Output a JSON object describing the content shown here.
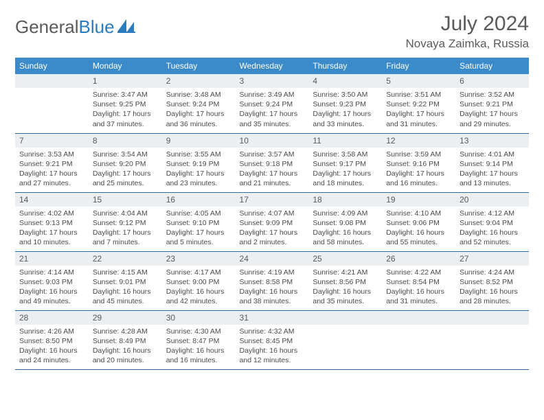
{
  "logo": {
    "text_a": "General",
    "text_b": "Blue"
  },
  "title": "July 2024",
  "location": "Novaya Zaimka, Russia",
  "colors": {
    "header_bg": "#3b8bca",
    "header_text": "#ffffff",
    "daynum_bg": "#eceff1",
    "border": "#2b6aa0",
    "text": "#4a4a4a",
    "logo_gray": "#5a5a5a",
    "logo_blue": "#2b7bbf"
  },
  "weekdays": [
    "Sunday",
    "Monday",
    "Tuesday",
    "Wednesday",
    "Thursday",
    "Friday",
    "Saturday"
  ],
  "weeks": [
    [
      null,
      {
        "n": "1",
        "sr": "3:47 AM",
        "ss": "9:25 PM",
        "dl": "17 hours and 37 minutes."
      },
      {
        "n": "2",
        "sr": "3:48 AM",
        "ss": "9:24 PM",
        "dl": "17 hours and 36 minutes."
      },
      {
        "n": "3",
        "sr": "3:49 AM",
        "ss": "9:24 PM",
        "dl": "17 hours and 35 minutes."
      },
      {
        "n": "4",
        "sr": "3:50 AM",
        "ss": "9:23 PM",
        "dl": "17 hours and 33 minutes."
      },
      {
        "n": "5",
        "sr": "3:51 AM",
        "ss": "9:22 PM",
        "dl": "17 hours and 31 minutes."
      },
      {
        "n": "6",
        "sr": "3:52 AM",
        "ss": "9:21 PM",
        "dl": "17 hours and 29 minutes."
      }
    ],
    [
      {
        "n": "7",
        "sr": "3:53 AM",
        "ss": "9:21 PM",
        "dl": "17 hours and 27 minutes."
      },
      {
        "n": "8",
        "sr": "3:54 AM",
        "ss": "9:20 PM",
        "dl": "17 hours and 25 minutes."
      },
      {
        "n": "9",
        "sr": "3:55 AM",
        "ss": "9:19 PM",
        "dl": "17 hours and 23 minutes."
      },
      {
        "n": "10",
        "sr": "3:57 AM",
        "ss": "9:18 PM",
        "dl": "17 hours and 21 minutes."
      },
      {
        "n": "11",
        "sr": "3:58 AM",
        "ss": "9:17 PM",
        "dl": "17 hours and 18 minutes."
      },
      {
        "n": "12",
        "sr": "3:59 AM",
        "ss": "9:16 PM",
        "dl": "17 hours and 16 minutes."
      },
      {
        "n": "13",
        "sr": "4:01 AM",
        "ss": "9:14 PM",
        "dl": "17 hours and 13 minutes."
      }
    ],
    [
      {
        "n": "14",
        "sr": "4:02 AM",
        "ss": "9:13 PM",
        "dl": "17 hours and 10 minutes."
      },
      {
        "n": "15",
        "sr": "4:04 AM",
        "ss": "9:12 PM",
        "dl": "17 hours and 7 minutes."
      },
      {
        "n": "16",
        "sr": "4:05 AM",
        "ss": "9:10 PM",
        "dl": "17 hours and 5 minutes."
      },
      {
        "n": "17",
        "sr": "4:07 AM",
        "ss": "9:09 PM",
        "dl": "17 hours and 2 minutes."
      },
      {
        "n": "18",
        "sr": "4:09 AM",
        "ss": "9:08 PM",
        "dl": "16 hours and 58 minutes."
      },
      {
        "n": "19",
        "sr": "4:10 AM",
        "ss": "9:06 PM",
        "dl": "16 hours and 55 minutes."
      },
      {
        "n": "20",
        "sr": "4:12 AM",
        "ss": "9:04 PM",
        "dl": "16 hours and 52 minutes."
      }
    ],
    [
      {
        "n": "21",
        "sr": "4:14 AM",
        "ss": "9:03 PM",
        "dl": "16 hours and 49 minutes."
      },
      {
        "n": "22",
        "sr": "4:15 AM",
        "ss": "9:01 PM",
        "dl": "16 hours and 45 minutes."
      },
      {
        "n": "23",
        "sr": "4:17 AM",
        "ss": "9:00 PM",
        "dl": "16 hours and 42 minutes."
      },
      {
        "n": "24",
        "sr": "4:19 AM",
        "ss": "8:58 PM",
        "dl": "16 hours and 38 minutes."
      },
      {
        "n": "25",
        "sr": "4:21 AM",
        "ss": "8:56 PM",
        "dl": "16 hours and 35 minutes."
      },
      {
        "n": "26",
        "sr": "4:22 AM",
        "ss": "8:54 PM",
        "dl": "16 hours and 31 minutes."
      },
      {
        "n": "27",
        "sr": "4:24 AM",
        "ss": "8:52 PM",
        "dl": "16 hours and 28 minutes."
      }
    ],
    [
      {
        "n": "28",
        "sr": "4:26 AM",
        "ss": "8:50 PM",
        "dl": "16 hours and 24 minutes."
      },
      {
        "n": "29",
        "sr": "4:28 AM",
        "ss": "8:49 PM",
        "dl": "16 hours and 20 minutes."
      },
      {
        "n": "30",
        "sr": "4:30 AM",
        "ss": "8:47 PM",
        "dl": "16 hours and 16 minutes."
      },
      {
        "n": "31",
        "sr": "4:32 AM",
        "ss": "8:45 PM",
        "dl": "16 hours and 12 minutes."
      },
      null,
      null,
      null
    ]
  ]
}
